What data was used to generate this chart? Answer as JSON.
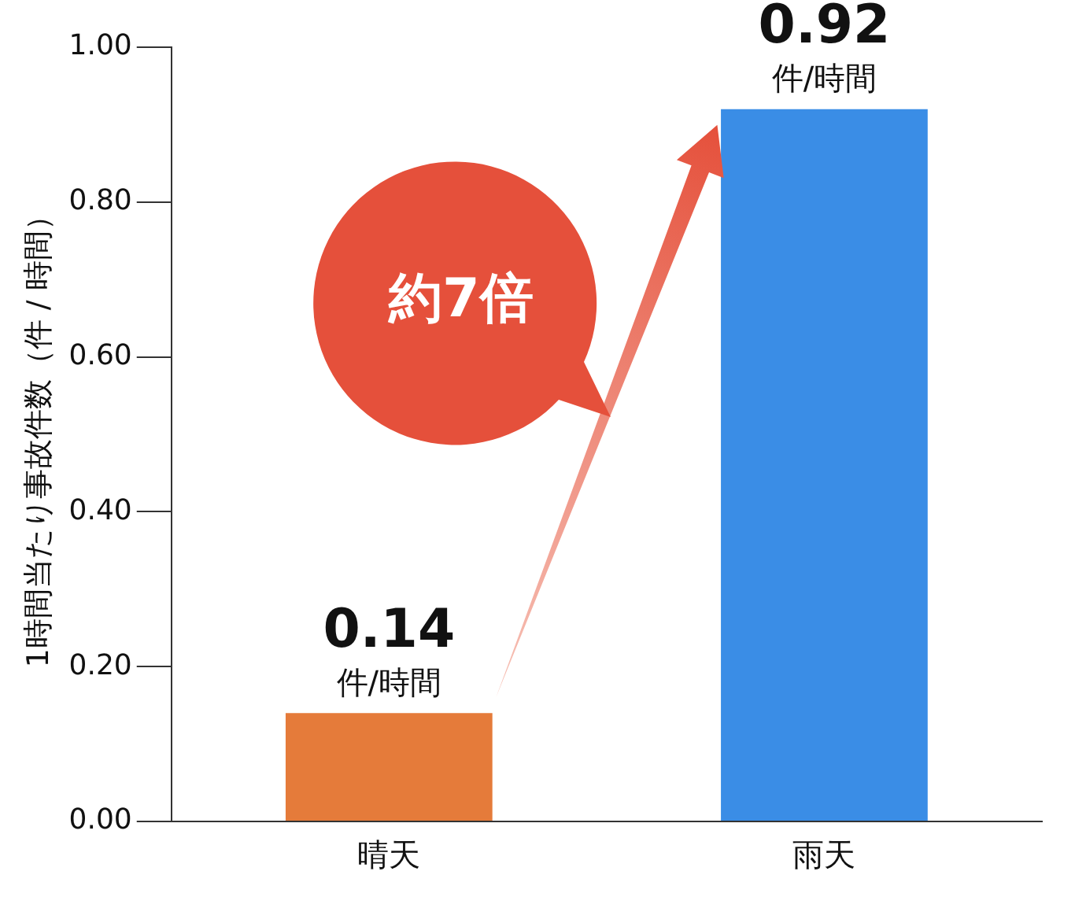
{
  "chart_data": {
    "type": "bar",
    "ylabel": "1時間当たり事故件数（件 / 時間）",
    "categories": [
      "晴天",
      "雨天"
    ],
    "values": [
      0.14,
      0.92
    ],
    "colors": [
      "#e57b3a",
      "#3a8de6"
    ],
    "value_labels": [
      "0.14",
      "0.92"
    ],
    "ylim": [
      0,
      1
    ],
    "yticks": [
      {
        "value": 0,
        "label": "0.00"
      },
      {
        "value": 0.2,
        "label": "0.20"
      },
      {
        "value": 0.4,
        "label": "0.40"
      },
      {
        "value": 0.6,
        "label": "0.60"
      },
      {
        "value": 0.8,
        "label": "0.80"
      },
      {
        "value": 1,
        "label": "1.00"
      }
    ],
    "annotations": [
      {
        "text": "件/時間",
        "x": "晴天",
        "y": 0.14
      },
      {
        "text": "件/時間",
        "x": "雨天",
        "y": 0.92
      },
      "約7倍"
    ],
    "legend": false
  }
}
